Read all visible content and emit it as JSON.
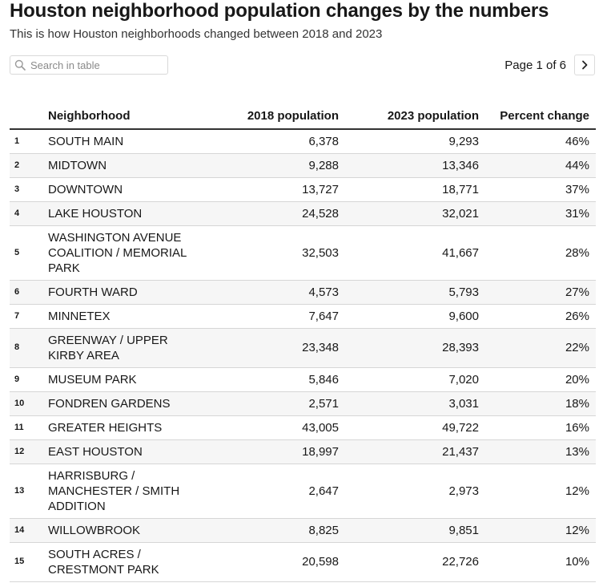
{
  "header": {
    "title": "Houston neighborhood population changes by the numbers",
    "subtitle": "This is how Houston neighborhoods changed between 2018 and 2023"
  },
  "search": {
    "placeholder": "Search in table",
    "value": ""
  },
  "pager": {
    "label": "Page 1 of 6",
    "next_icon": "chevron-right-icon"
  },
  "chart_data": {
    "type": "table",
    "title": "Houston neighborhood population changes by the numbers",
    "columns": {
      "rank": "",
      "neighborhood": "Neighborhood",
      "pop_2018": "2018 population",
      "pop_2023": "2023 population",
      "percent_change": "Percent change"
    },
    "rows": [
      {
        "rank": "1",
        "neighborhood": "SOUTH MAIN",
        "pop_2018": "6,378",
        "pop_2023": "9,293",
        "percent_change": "46%"
      },
      {
        "rank": "2",
        "neighborhood": "MIDTOWN",
        "pop_2018": "9,288",
        "pop_2023": "13,346",
        "percent_change": "44%"
      },
      {
        "rank": "3",
        "neighborhood": "DOWNTOWN",
        "pop_2018": "13,727",
        "pop_2023": "18,771",
        "percent_change": "37%"
      },
      {
        "rank": "4",
        "neighborhood": "LAKE HOUSTON",
        "pop_2018": "24,528",
        "pop_2023": "32,021",
        "percent_change": "31%"
      },
      {
        "rank": "5",
        "neighborhood": "WASHINGTON AVENUE COALITION / MEMORIAL PARK",
        "pop_2018": "32,503",
        "pop_2023": "41,667",
        "percent_change": "28%"
      },
      {
        "rank": "6",
        "neighborhood": "FOURTH WARD",
        "pop_2018": "4,573",
        "pop_2023": "5,793",
        "percent_change": "27%"
      },
      {
        "rank": "7",
        "neighborhood": "MINNETEX",
        "pop_2018": "7,647",
        "pop_2023": "9,600",
        "percent_change": "26%"
      },
      {
        "rank": "8",
        "neighborhood": "GREENWAY / UPPER KIRBY AREA",
        "pop_2018": "23,348",
        "pop_2023": "28,393",
        "percent_change": "22%"
      },
      {
        "rank": "9",
        "neighborhood": "MUSEUM PARK",
        "pop_2018": "5,846",
        "pop_2023": "7,020",
        "percent_change": "20%"
      },
      {
        "rank": "10",
        "neighborhood": "FONDREN GARDENS",
        "pop_2018": "2,571",
        "pop_2023": "3,031",
        "percent_change": "18%"
      },
      {
        "rank": "11",
        "neighborhood": "GREATER HEIGHTS",
        "pop_2018": "43,005",
        "pop_2023": "49,722",
        "percent_change": "16%"
      },
      {
        "rank": "12",
        "neighborhood": "EAST HOUSTON",
        "pop_2018": "18,997",
        "pop_2023": "21,437",
        "percent_change": "13%"
      },
      {
        "rank": "13",
        "neighborhood": "HARRISBURG / MANCHESTER / SMITH ADDITION",
        "pop_2018": "2,647",
        "pop_2023": "2,973",
        "percent_change": "12%"
      },
      {
        "rank": "14",
        "neighborhood": "WILLOWBROOK",
        "pop_2018": "8,825",
        "pop_2023": "9,851",
        "percent_change": "12%"
      },
      {
        "rank": "15",
        "neighborhood": "SOUTH ACRES / CRESTMONT PARK",
        "pop_2018": "20,598",
        "pop_2023": "22,726",
        "percent_change": "10%"
      }
    ]
  }
}
